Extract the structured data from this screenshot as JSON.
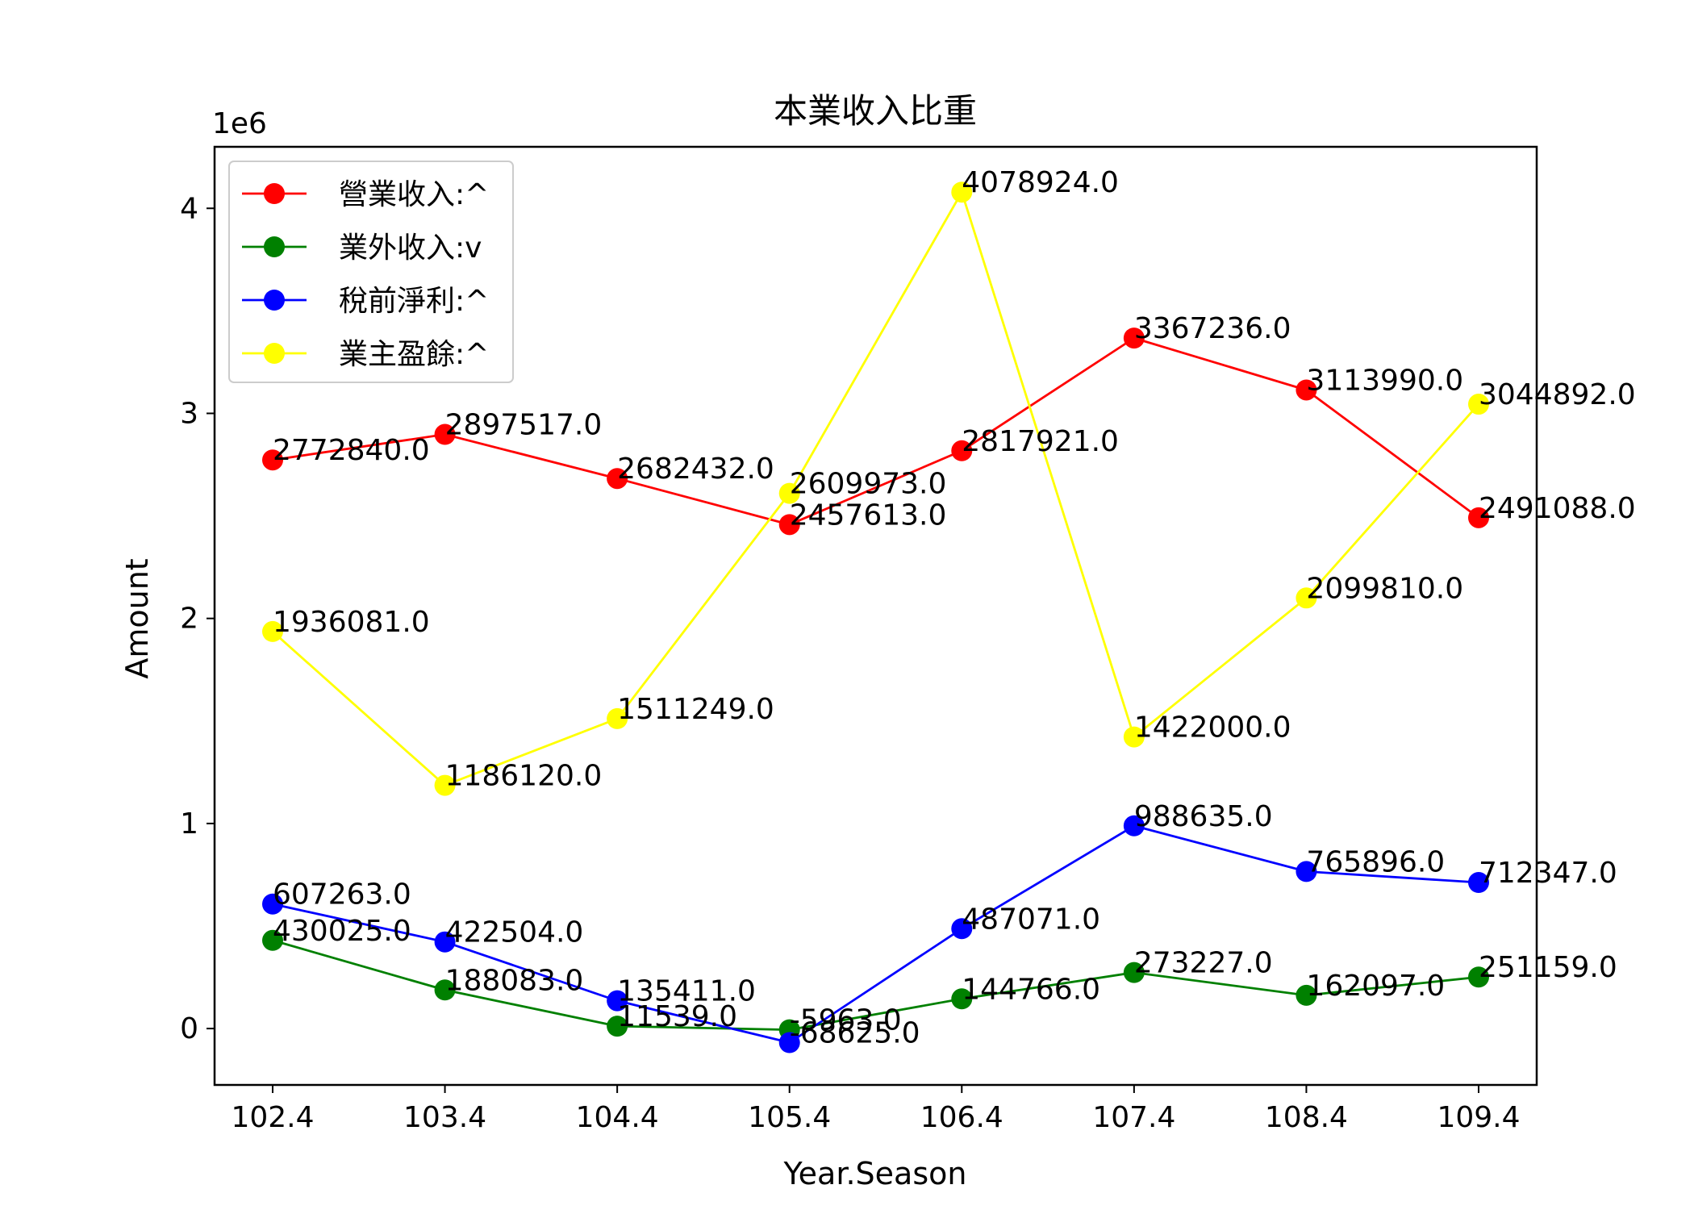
{
  "chart_data": {
    "type": "line",
    "title": "本業收入比重",
    "xlabel": "Year.Season",
    "ylabel": "Amount",
    "y_offset_text": "1e6",
    "categories": [
      "102.4",
      "103.4",
      "104.4",
      "105.4",
      "106.4",
      "107.4",
      "108.4",
      "109.4"
    ],
    "yticks": [
      0,
      1,
      2,
      3,
      4
    ],
    "ylim": [
      -275000,
      4300000
    ],
    "grid": false,
    "legend_position": "upper-left",
    "series": [
      {
        "name": "營業收入:^",
        "color": "#ff0000",
        "values": [
          2772840,
          2897517,
          2682432,
          2457613,
          2817921,
          3367236,
          3113990,
          2491088
        ],
        "labels": [
          "2772840.0",
          "2897517.0",
          "2682432.0",
          "2457613.0",
          "2817921.0",
          "3367236.0",
          "3113990.0",
          "2491088.0"
        ]
      },
      {
        "name": "業外收入:v",
        "color": "#008000",
        "values": [
          430025,
          188083,
          11539,
          -5963,
          144766,
          273227,
          162097,
          251159
        ],
        "labels": [
          "430025.0",
          "188083.0",
          "11539.0",
          "-5963.0",
          "144766.0",
          "273227.0",
          "162097.0",
          "251159.0"
        ]
      },
      {
        "name": "稅前淨利:^",
        "color": "#0000ff",
        "values": [
          607263,
          422504,
          135411,
          -68625,
          487071,
          988635,
          765896,
          712347
        ],
        "labels": [
          "607263.0",
          "422504.0",
          "135411.0",
          "-68625.0",
          "487071.0",
          "988635.0",
          "765896.0",
          "712347.0"
        ]
      },
      {
        "name": "業主盈餘:^",
        "color": "#ffff00",
        "values": [
          1936081,
          1186120,
          1511249,
          2609973,
          4078924,
          1422000,
          2099810,
          3044892
        ],
        "labels": [
          "1936081.0",
          "1186120.0",
          "1511249.0",
          "2609973.0",
          "4078924.0",
          "1422000.0",
          "2099810.0",
          "3044892.0"
        ]
      }
    ]
  }
}
